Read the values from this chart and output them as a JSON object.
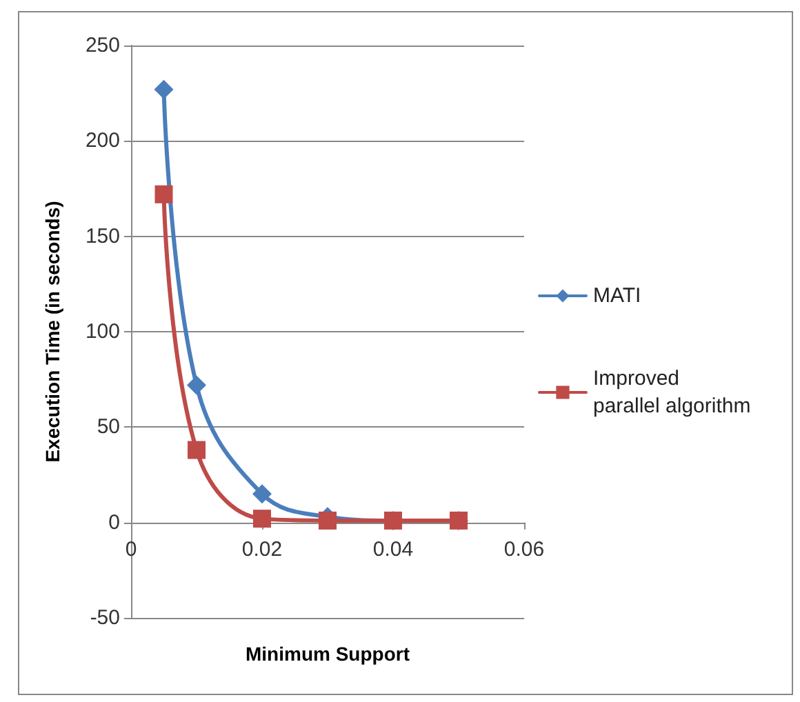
{
  "chart_data": {
    "type": "line",
    "xlabel": "Minimum Support",
    "ylabel": "Execution Time (in seconds)",
    "x": [
      0.005,
      0.01,
      0.02,
      0.03,
      0.04,
      0.05
    ],
    "series": [
      {
        "name": "MATI",
        "color": "#4a7ebb",
        "marker": "diamond",
        "values": [
          227,
          72,
          15,
          3,
          1,
          1
        ]
      },
      {
        "name": "Improved parallel algorithm",
        "color": "#be4b48",
        "marker": "square",
        "values": [
          172,
          38,
          2,
          1,
          1,
          1
        ]
      }
    ],
    "xlim": [
      0,
      0.06
    ],
    "xticks": [
      0,
      0.02,
      0.04,
      0.06
    ],
    "ylim": [
      -50,
      250
    ],
    "yticks": [
      -50,
      0,
      50,
      100,
      150,
      200,
      250
    ],
    "grid": "y",
    "legend": "right",
    "line_style": "solid"
  }
}
